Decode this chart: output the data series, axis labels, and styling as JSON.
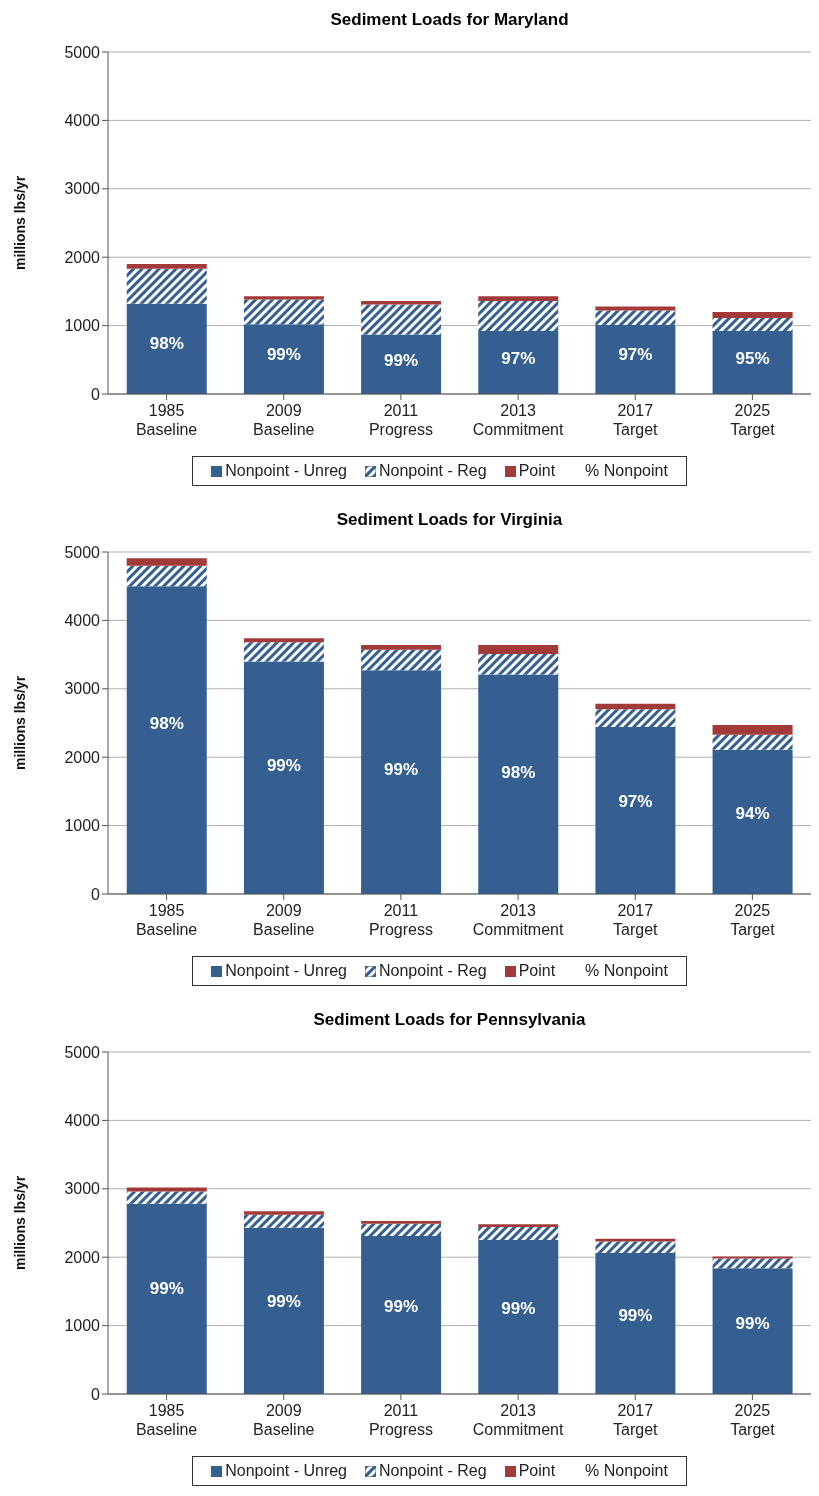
{
  "chart_data": [
    {
      "type": "bar",
      "title": "Sediment  Loads for Maryland",
      "ylabel": "millions  lbs/yr",
      "categories": [
        "1985 Baseline",
        "2009 Baseline",
        "2011 Progress",
        "2013 Commitment",
        "2017 Target",
        "2025 Target"
      ],
      "stacked": true,
      "ylim": [
        0,
        5000
      ],
      "yticks": [
        0,
        1000,
        2000,
        3000,
        4000,
        5000
      ],
      "grid": "y",
      "legend": "bottom",
      "legend_title": "% Nonpoint",
      "series": [
        {
          "name": "Nonpoint - Unreg",
          "color": "#355f91",
          "values": [
            1320,
            1020,
            870,
            920,
            1010,
            920
          ]
        },
        {
          "name": "Nonpoint - Reg",
          "color": "#355f91",
          "values": [
            510,
            360,
            440,
            440,
            210,
            190
          ]
        },
        {
          "name": "Point",
          "color": "#a33a3a",
          "values": [
            70,
            50,
            50,
            70,
            60,
            90
          ]
        }
      ],
      "annotations": [
        "98%",
        "99%",
        "99%",
        "97%",
        "97%",
        "95%"
      ]
    },
    {
      "type": "bar",
      "title": "Sediment  Loads for Virginia",
      "ylabel": "millions  lbs/yr",
      "categories": [
        "1985 Baseline",
        "2009 Baseline",
        "2011 Progress",
        "2013 Commitment",
        "2017 Target",
        "2025 Target"
      ],
      "stacked": true,
      "ylim": [
        0,
        5000
      ],
      "yticks": [
        0,
        1000,
        2000,
        3000,
        4000,
        5000
      ],
      "grid": "y",
      "legend": "bottom",
      "legend_title": "% Nonpoint",
      "series": [
        {
          "name": "Nonpoint - Unreg",
          "color": "#355f91",
          "values": [
            4500,
            3400,
            3270,
            3210,
            2440,
            2110
          ]
        },
        {
          "name": "Nonpoint - Reg",
          "color": "#355f91",
          "values": [
            300,
            280,
            300,
            300,
            260,
            220
          ]
        },
        {
          "name": "Point",
          "color": "#a33a3a",
          "values": [
            110,
            60,
            70,
            130,
            80,
            140
          ]
        }
      ],
      "annotations": [
        "98%",
        "99%",
        "99%",
        "98%",
        "97%",
        "94%"
      ]
    },
    {
      "type": "bar",
      "title": "Sediment  Loads for Pennsylvania",
      "ylabel": "millions  lbs/yr",
      "categories": [
        "1985 Baseline",
        "2009 Baseline",
        "2011 Progress",
        "2013 Commitment",
        "2017 Target",
        "2025 Target"
      ],
      "stacked": true,
      "ylim": [
        0,
        5000
      ],
      "yticks": [
        0,
        1000,
        2000,
        3000,
        4000,
        5000
      ],
      "grid": "y",
      "legend": "bottom",
      "legend_title": "% Nonpoint",
      "series": [
        {
          "name": "Nonpoint - Unreg",
          "color": "#355f91",
          "values": [
            2780,
            2430,
            2310,
            2250,
            2060,
            1840
          ]
        },
        {
          "name": "Nonpoint - Reg",
          "color": "#355f91",
          "values": [
            180,
            190,
            180,
            190,
            170,
            140
          ]
        },
        {
          "name": "Point",
          "color": "#a33a3a",
          "values": [
            60,
            50,
            40,
            40,
            40,
            30
          ]
        }
      ],
      "annotations": [
        "99%",
        "99%",
        "99%",
        "99%",
        "99%",
        "99%"
      ]
    }
  ]
}
